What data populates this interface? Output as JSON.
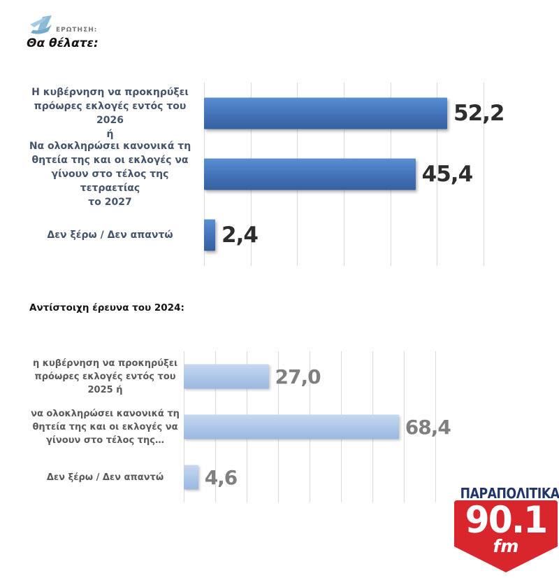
{
  "header": {
    "question_label": "ΕΡΩΤΗΣΗ:",
    "title": "Θα θέλατε:"
  },
  "section2": {
    "title": "Αντίστοιχη έρευνα του 2024:"
  },
  "chart_data": [
    {
      "type": "bar",
      "orientation": "horizontal",
      "title": "Θα θέλατε:",
      "categories": [
        "Η κυβέρνηση να προκηρύξει\nπρόωρες εκλογές εντός του 2026\nή",
        "Να ολοκληρώσει κανονικά τη\nθητεία της και οι εκλογές να\nγίνουν στο τέλος της τετραετίας\nτο 2027",
        "Δεν ξέρω / Δεν απαντώ"
      ],
      "values": [
        52.2,
        45.4,
        2.4
      ],
      "value_labels": [
        "52,2",
        "45,4",
        "2,4"
      ],
      "xlim": [
        0,
        60
      ],
      "gridline_step": 10,
      "grid": "vertical-light-gray",
      "legend": "none",
      "bar_color": "#4a7cc2",
      "label_color": "#44546a",
      "value_color": "#2d2d2d"
    },
    {
      "type": "bar",
      "orientation": "horizontal",
      "title": "Αντίστοιχη έρευνα του 2024:",
      "categories": [
        "η κυβέρνηση να προκηρύξει\nπρόωρες εκλογές εντός του\n2025 ή",
        "να ολοκληρώσει κανονικά τη\nθητεία της και οι εκλογές να\nγίνουν στο τέλος της…",
        "Δεν ξέρω / Δεν απαντώ"
      ],
      "values": [
        27.0,
        68.4,
        4.6
      ],
      "value_labels": [
        "27,0",
        "68,4",
        "4,6"
      ],
      "xlim": [
        0,
        80
      ],
      "gridline_step": 10,
      "grid": "vertical-light-gray",
      "legend": "none",
      "bar_color": "#b4cbea",
      "label_color": "#595959",
      "value_color": "#7f7f7f"
    }
  ],
  "logo": {
    "brand": "ΠΑΡΑΠΟΛΙΤΙΚΑ",
    "frequency": "90.1",
    "band": "fm",
    "red": "#d8262c",
    "navy": "#22356b"
  }
}
